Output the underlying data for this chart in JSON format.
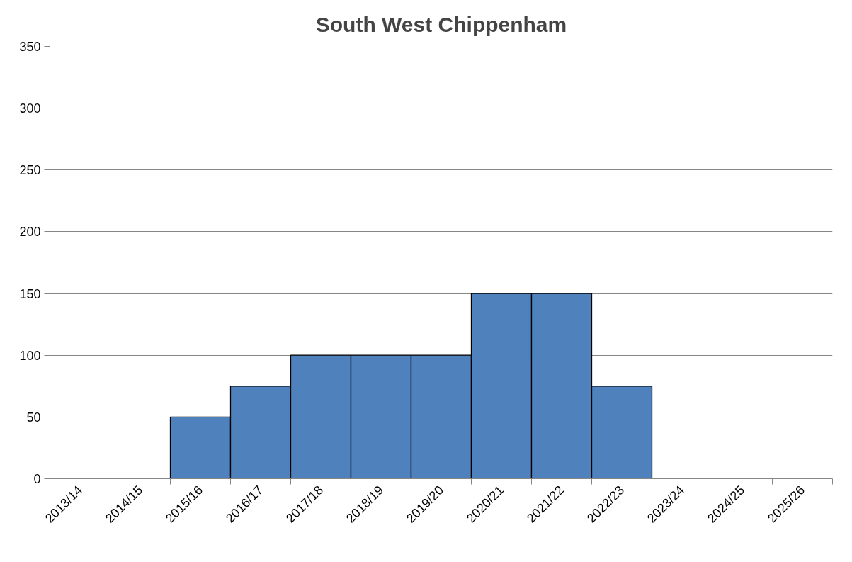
{
  "chart_data": {
    "type": "bar",
    "title": "South West Chippenham",
    "categories": [
      "2013/14",
      "2014/15",
      "2015/16",
      "2016/17",
      "2017/18",
      "2018/19",
      "2019/20",
      "2020/21",
      "2021/22",
      "2022/23",
      "2023/24",
      "2024/25",
      "2025/26"
    ],
    "values": [
      null,
      null,
      50,
      75,
      100,
      100,
      100,
      150,
      150,
      75,
      null,
      null,
      null
    ],
    "color": "#4f81bd",
    "ylim": [
      0,
      350
    ],
    "yticks": [
      0,
      50,
      100,
      150,
      200,
      250,
      300,
      350
    ],
    "grid": "y"
  }
}
